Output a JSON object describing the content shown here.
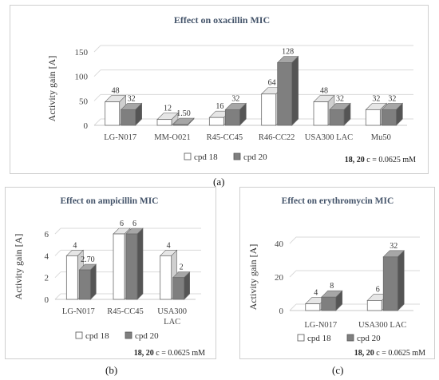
{
  "chart_data": [
    {
      "id": "a",
      "type": "bar",
      "title": "Effect on oxacillin MIC",
      "ylabel": "Activity gain [A]",
      "xlabel": "",
      "categories": [
        "LG-N017",
        "MM-O021",
        "R45-CC45",
        "R46-CC22",
        "USA300 LAC",
        "Mu50"
      ],
      "series": [
        {
          "name": "cpd 18",
          "values": [
            48,
            12,
            16,
            64,
            48,
            32
          ],
          "labels": [
            "48",
            "12",
            "16",
            "64",
            "48",
            "32"
          ],
          "color": "#ffffff"
        },
        {
          "name": "cpd 20",
          "values": [
            32,
            1.5,
            32,
            128,
            32,
            32
          ],
          "labels": [
            "32",
            "1.50",
            "32",
            "128",
            "32",
            "32"
          ],
          "color": "#7f7f7f"
        }
      ],
      "ylim": [
        0,
        150
      ],
      "yticks": [
        "0",
        "50",
        "100",
        "150"
      ],
      "grid": true,
      "legend": "bottom",
      "note": {
        "bold": "18, 20",
        "text": " c = 0.0625 mM"
      },
      "caption": "(a)"
    },
    {
      "id": "b",
      "type": "bar",
      "title": "Effect on ampicillin MIC",
      "ylabel": "Activity gain [A]",
      "xlabel": "",
      "categories": [
        "LG-N017",
        "R45-CC45",
        "USA300 LAC"
      ],
      "series": [
        {
          "name": "cpd 18",
          "values": [
            4,
            6,
            4
          ],
          "labels": [
            "4",
            "6",
            "4"
          ],
          "color": "#ffffff"
        },
        {
          "name": "cpd 20",
          "values": [
            2.7,
            6,
            2
          ],
          "labels": [
            "2.70",
            "6",
            "2"
          ],
          "color": "#7f7f7f"
        }
      ],
      "ylim": [
        0,
        6
      ],
      "yticks": [
        "0",
        "2",
        "4",
        "6"
      ],
      "grid": true,
      "legend": "bottom",
      "note": {
        "bold": "18, 20",
        "text": " c = 0.0625 mM"
      },
      "caption": "(b)"
    },
    {
      "id": "c",
      "type": "bar",
      "title": "Effect on erythromycin MIC",
      "ylabel": "Activity gain [A]",
      "xlabel": "",
      "categories": [
        "LG-N017",
        "USA300 LAC"
      ],
      "series": [
        {
          "name": "cpd 18",
          "values": [
            4,
            6
          ],
          "labels": [
            "4",
            "6"
          ],
          "color": "#ffffff"
        },
        {
          "name": "cpd 20",
          "values": [
            8,
            32
          ],
          "labels": [
            "8",
            "32"
          ],
          "color": "#7f7f7f"
        }
      ],
      "ylim": [
        0,
        40
      ],
      "yticks": [
        "0",
        "20",
        "40"
      ],
      "grid": true,
      "legend": "bottom",
      "note": {
        "bold": "18, 20",
        "text": " c = 0.0625 mM"
      },
      "caption": "(c)"
    }
  ]
}
